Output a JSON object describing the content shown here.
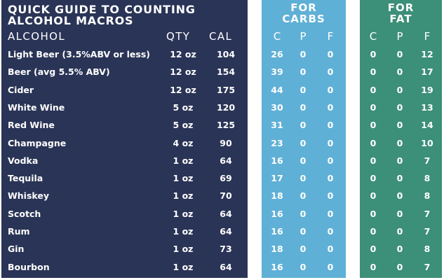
{
  "title": [
    "QUICK GUIDE TO COUNTING",
    "ALCOHOL MACROS"
  ],
  "headers": {
    "alcohol": "ALCOHOL",
    "qty": "QTY",
    "cal": "CAL"
  },
  "carbs_panel": {
    "title": [
      "FOR",
      "CARBS"
    ],
    "headers": [
      "C",
      "P",
      "F"
    ]
  },
  "fat_panel": {
    "title": [
      "FOR",
      "FAT"
    ],
    "headers": [
      "C",
      "P",
      "F"
    ]
  },
  "rows": [
    {
      "name": "Light Beer (3.5%ABV or less)",
      "qty": "12 oz",
      "cal": "104",
      "carbs": [
        "26",
        "0",
        "0"
      ],
      "fat": [
        "0",
        "0",
        "12"
      ]
    },
    {
      "name": "Beer (avg 5.5% ABV)",
      "qty": "12 oz",
      "cal": "154",
      "carbs": [
        "39",
        "0",
        "0"
      ],
      "fat": [
        "0",
        "0",
        "17"
      ]
    },
    {
      "name": "Cider",
      "qty": "12 oz",
      "cal": "175",
      "carbs": [
        "44",
        "0",
        "0"
      ],
      "fat": [
        "0",
        "0",
        "19"
      ]
    },
    {
      "name": "White Wine",
      "qty": "5 oz",
      "cal": "120",
      "carbs": [
        "30",
        "0",
        "0"
      ],
      "fat": [
        "0",
        "0",
        "13"
      ]
    },
    {
      "name": "Red Wine",
      "qty": "5 oz",
      "cal": "125",
      "carbs": [
        "31",
        "0",
        "0"
      ],
      "fat": [
        "0",
        "0",
        "14"
      ]
    },
    {
      "name": "Champagne",
      "qty": "4 oz",
      "cal": "90",
      "carbs": [
        "23",
        "0",
        "0"
      ],
      "fat": [
        "0",
        "0",
        "10"
      ]
    },
    {
      "name": "Vodka",
      "qty": "1 oz",
      "cal": "64",
      "carbs": [
        "16",
        "0",
        "0"
      ],
      "fat": [
        "0",
        "0",
        "7"
      ]
    },
    {
      "name": "Tequila",
      "qty": "1 oz",
      "cal": "69",
      "carbs": [
        "17",
        "0",
        "0"
      ],
      "fat": [
        "0",
        "0",
        "8"
      ]
    },
    {
      "name": "Whiskey",
      "qty": "1 oz",
      "cal": "70",
      "carbs": [
        "18",
        "0",
        "0"
      ],
      "fat": [
        "0",
        "0",
        "8"
      ]
    },
    {
      "name": "Scotch",
      "qty": "1 oz",
      "cal": "64",
      "carbs": [
        "16",
        "0",
        "0"
      ],
      "fat": [
        "0",
        "0",
        "7"
      ]
    },
    {
      "name": "Rum",
      "qty": "1 oz",
      "cal": "64",
      "carbs": [
        "16",
        "0",
        "0"
      ],
      "fat": [
        "0",
        "0",
        "7"
      ]
    },
    {
      "name": "Gin",
      "qty": "1 oz",
      "cal": "73",
      "carbs": [
        "18",
        "0",
        "0"
      ],
      "fat": [
        "0",
        "0",
        "8"
      ]
    },
    {
      "name": "Bourbon",
      "qty": "1 oz",
      "cal": "64",
      "carbs": [
        "16",
        "0",
        "0"
      ],
      "fat": [
        "0",
        "0",
        "7"
      ]
    }
  ],
  "colors": {
    "main_panel": "#2a3456",
    "carbs_panel": "#5fb0d6",
    "fat_panel": "#3c8f78",
    "text": "#ffffff"
  }
}
